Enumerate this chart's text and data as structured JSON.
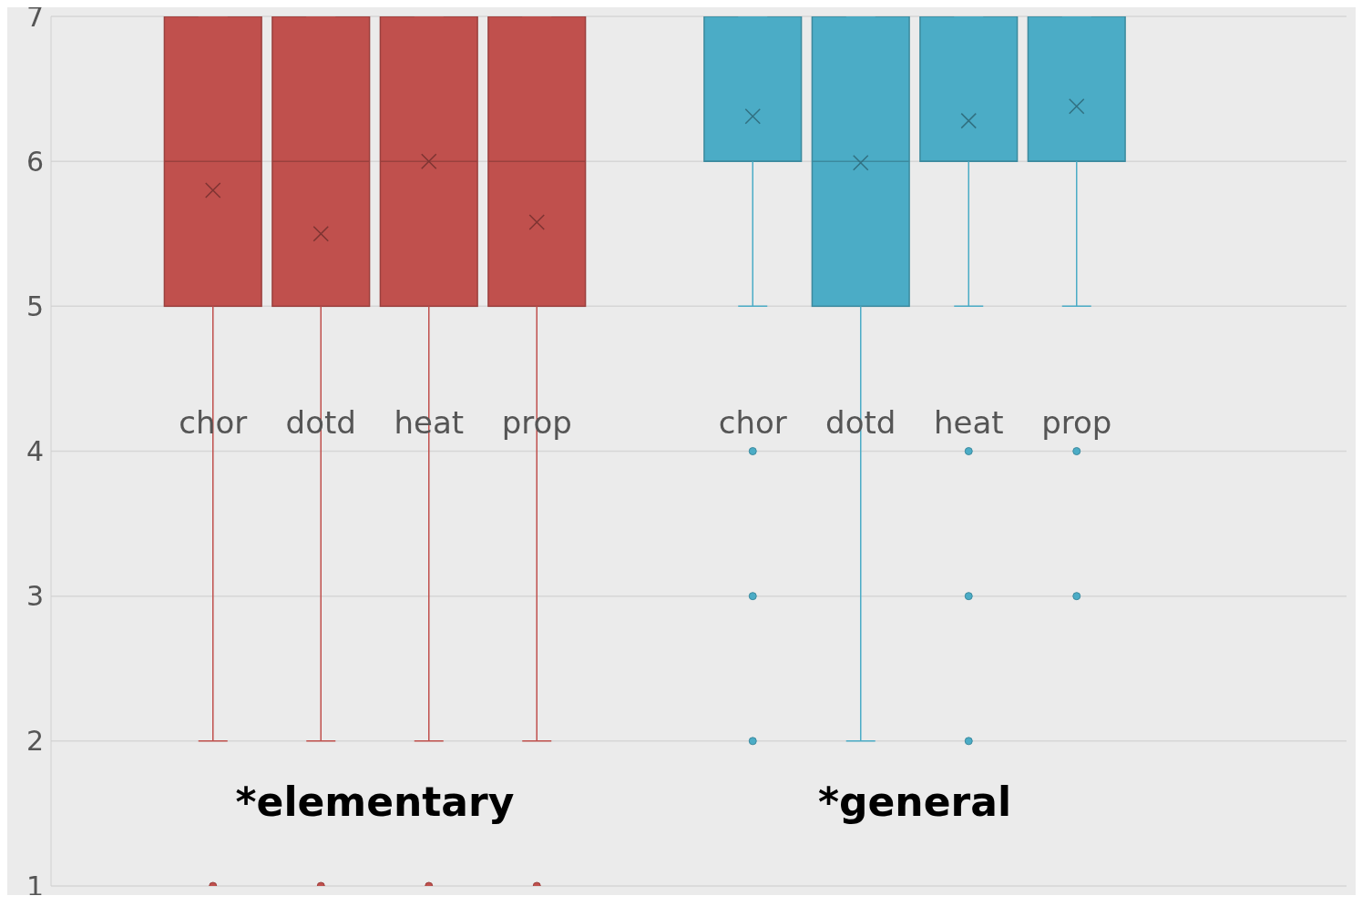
{
  "chart_data": {
    "type": "box",
    "categories": [
      null,
      "chor",
      "dotd",
      "heat",
      "prop",
      null,
      "chor",
      "dotd",
      "heat",
      "prop",
      null,
      null
    ],
    "colors": [
      null,
      "#c0504d",
      "#c0504d",
      "#c0504d",
      "#c0504d",
      null,
      "#4bacc6",
      "#4bacc6",
      "#4bacc6",
      "#4bacc6",
      null,
      null
    ],
    "boxes": [
      null,
      {
        "low": 2,
        "q1": 5,
        "median": 6,
        "q3": 7,
        "high": 7,
        "mean": 5.8,
        "outliers": [
          1
        ]
      },
      {
        "low": 2,
        "q1": 5,
        "median": 6,
        "q3": 7,
        "high": 7,
        "mean": 5.5,
        "outliers": [
          1
        ]
      },
      {
        "low": 2,
        "q1": 5,
        "median": 6,
        "q3": 7,
        "high": 7,
        "mean": 6.0,
        "outliers": [
          1
        ]
      },
      {
        "low": 2,
        "q1": 5,
        "median": 6,
        "q3": 7,
        "high": 7,
        "mean": 5.58,
        "outliers": [
          1
        ]
      },
      null,
      {
        "low": 5,
        "q1": 6,
        "median": 6,
        "q3": 7,
        "high": 7,
        "mean": 6.31,
        "outliers": [
          4,
          3,
          2
        ]
      },
      {
        "low": 2,
        "q1": 5,
        "median": 6,
        "q3": 7,
        "high": 7,
        "mean": 5.99
      },
      {
        "low": 5,
        "q1": 6,
        "median": 6,
        "q3": 7,
        "high": 7,
        "mean": 6.28,
        "outliers": [
          4,
          3,
          2
        ]
      },
      {
        "low": 5,
        "q1": 6,
        "median": 6,
        "q3": 7,
        "high": 7,
        "mean": 6.38,
        "outliers": [
          4,
          3
        ]
      },
      null,
      null
    ],
    "annotations": [
      "*elementary",
      "*general"
    ],
    "ylim": [
      1,
      7
    ],
    "yticks": [
      1,
      2,
      3,
      4,
      5,
      6,
      7
    ],
    "grid": "y",
    "legend": false
  }
}
